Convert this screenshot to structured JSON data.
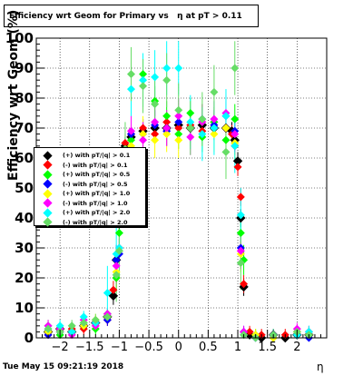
{
  "title": "Efficiency wrt Geom for Primary vs   η at pT > 0.11",
  "footer_date": "Tue May 15 09:21:19 2018",
  "chart_data": {
    "type": "scatter",
    "xlabel": "η",
    "ylabel": "Efficiency wrt Geom (%)",
    "xlim": [
      -2.4,
      2.5
    ],
    "ylim": [
      0,
      100
    ],
    "xticks": [
      -2,
      -1.5,
      -1,
      -0.5,
      0,
      0.5,
      1,
      1.5,
      2
    ],
    "yticks": [
      0,
      10,
      20,
      30,
      40,
      50,
      60,
      70,
      80,
      90,
      100
    ],
    "grid": true,
    "legend_position": "left",
    "series": [
      {
        "name": "(+) with pT/|q| > 0.1",
        "color": "#000000",
        "x": [
          -2.2,
          -2.0,
          -1.8,
          -1.6,
          -1.4,
          -1.2,
          -1.1,
          -1.05,
          -1.0,
          -0.95,
          -0.9,
          -0.8,
          -0.6,
          -0.4,
          -0.2,
          0,
          0.2,
          0.4,
          0.6,
          0.8,
          0.9,
          0.95,
          1.0,
          1.05,
          1.1,
          1.2,
          1.4,
          1.6,
          1.8,
          2.0,
          2.2
        ],
        "y": [
          2,
          3,
          2,
          4,
          5,
          7,
          14,
          26,
          38,
          55,
          64,
          67,
          69,
          70,
          70,
          71,
          70,
          71,
          70,
          70,
          69,
          66,
          59,
          40,
          17,
          1,
          0,
          1,
          0,
          1,
          1
        ]
      },
      {
        "name": "(-) with pT/|q| > 0.1",
        "color": "#ff0000",
        "x": [
          -2.2,
          -2.0,
          -1.8,
          -1.6,
          -1.4,
          -1.2,
          -1.1,
          -1.05,
          -1.0,
          -0.95,
          -0.9,
          -0.8,
          -0.6,
          -0.4,
          -0.2,
          0,
          0.2,
          0.4,
          0.6,
          0.8,
          0.9,
          0.95,
          1.0,
          1.05,
          1.1,
          1.2,
          1.4,
          1.6,
          1.8,
          2.0,
          2.2
        ],
        "y": [
          1,
          2,
          3,
          3,
          5,
          6,
          16,
          20,
          40,
          56,
          65,
          68,
          70,
          68,
          72,
          70,
          71,
          69,
          72,
          70,
          68,
          64,
          57,
          47,
          18,
          2,
          1,
          0,
          1,
          2,
          1
        ]
      },
      {
        "name": "(+) with pT/|q| > 0.5",
        "color": "#00ff00",
        "x": [
          -2.2,
          -2.0,
          -1.8,
          -1.6,
          -1.4,
          -1.2,
          -1.05,
          -1.0,
          -0.9,
          -0.8,
          -0.6,
          -0.4,
          -0.2,
          0,
          0.2,
          0.4,
          0.6,
          0.8,
          0.95,
          1.05,
          1.1,
          1.3,
          1.6,
          2.0,
          2.2
        ],
        "y": [
          4,
          1,
          2,
          5,
          3,
          8,
          20,
          35,
          60,
          66,
          88,
          79,
          74,
          68,
          75,
          67,
          72,
          66,
          73,
          35,
          26,
          1,
          0,
          1,
          2
        ]
      },
      {
        "name": "(-) with pT/|q| > 0.5",
        "color": "#0000ff",
        "x": [
          -2.2,
          -2.0,
          -1.8,
          -1.6,
          -1.4,
          -1.2,
          -1.05,
          -1.0,
          -0.9,
          -0.8,
          -0.6,
          -0.4,
          -0.2,
          0,
          0.2,
          0.4,
          0.6,
          0.8,
          0.95,
          1.05,
          1.1,
          1.3,
          1.6,
          2.0,
          2.2
        ],
        "y": [
          1,
          2,
          2,
          4,
          5,
          6,
          26,
          28,
          62,
          68,
          68,
          71,
          69,
          72,
          70,
          73,
          71,
          74,
          69,
          30,
          2,
          0,
          1,
          1,
          0
        ]
      },
      {
        "name": "(+) with pT/|q| > 1.0",
        "color": "#ffff00",
        "x": [
          -2.2,
          -2.0,
          -1.8,
          -1.6,
          -1.4,
          -1.2,
          -1.05,
          -1.0,
          -0.9,
          -0.8,
          -0.6,
          -0.4,
          -0.2,
          0,
          0.2,
          0.4,
          0.6,
          0.8,
          0.95,
          1.05,
          1.1,
          1.3,
          1.6,
          2.0,
          2.2
        ],
        "y": [
          2,
          3,
          2,
          4,
          6,
          7,
          22,
          30,
          56,
          64,
          68,
          66,
          68,
          66,
          70,
          72,
          68,
          70,
          65,
          28,
          1,
          1,
          0,
          2,
          1
        ]
      },
      {
        "name": "(-) with pT/|q| > 1.0",
        "color": "#ff00ff",
        "x": [
          -2.2,
          -2.0,
          -1.8,
          -1.6,
          -1.4,
          -1.2,
          -1.05,
          -1.0,
          -0.9,
          -0.8,
          -0.6,
          -0.4,
          -0.2,
          0,
          0.2,
          0.4,
          0.6,
          0.8,
          0.95,
          1.05,
          1.1,
          1.3,
          1.6,
          2.0,
          2.2
        ],
        "y": [
          4,
          3,
          1,
          6,
          4,
          8,
          24,
          30,
          60,
          69,
          66,
          72,
          70,
          74,
          67,
          72,
          73,
          75,
          68,
          29,
          2,
          0,
          1,
          3,
          2
        ]
      },
      {
        "name": "(+) with pT/|q| > 2.0",
        "color": "#00ffff",
        "x": [
          -2.2,
          -2.0,
          -1.8,
          -1.6,
          -1.4,
          -1.2,
          -1.05,
          -1.0,
          -0.9,
          -0.8,
          -0.6,
          -0.4,
          -0.2,
          0,
          0.2,
          0.4,
          0.6,
          0.8,
          0.95,
          1.05,
          1.1,
          1.3,
          1.6,
          2.0,
          2.2
        ],
        "y": [
          3,
          4,
          2,
          7,
          5,
          15,
          28,
          30,
          58,
          83,
          86,
          87,
          90,
          90,
          72,
          68,
          70,
          74,
          64,
          41,
          1,
          0,
          1,
          1,
          2
        ]
      },
      {
        "name": "(-) with pT/|q| > 2.0",
        "color": "#66dd66",
        "x": [
          -2.2,
          -2.0,
          -1.8,
          -1.6,
          -1.4,
          -1.2,
          -1.05,
          -1.0,
          -0.9,
          -0.8,
          -0.6,
          -0.4,
          -0.2,
          0,
          0.2,
          0.4,
          0.6,
          0.8,
          0.95,
          1.05,
          1.1,
          1.3,
          1.6,
          2.0,
          2.2
        ],
        "y": [
          3,
          2,
          4,
          5,
          6,
          7,
          21,
          29,
          63,
          88,
          84,
          78,
          86,
          76,
          70,
          73,
          82,
          62,
          90,
          25,
          1,
          0,
          1,
          2,
          1
        ]
      }
    ]
  }
}
